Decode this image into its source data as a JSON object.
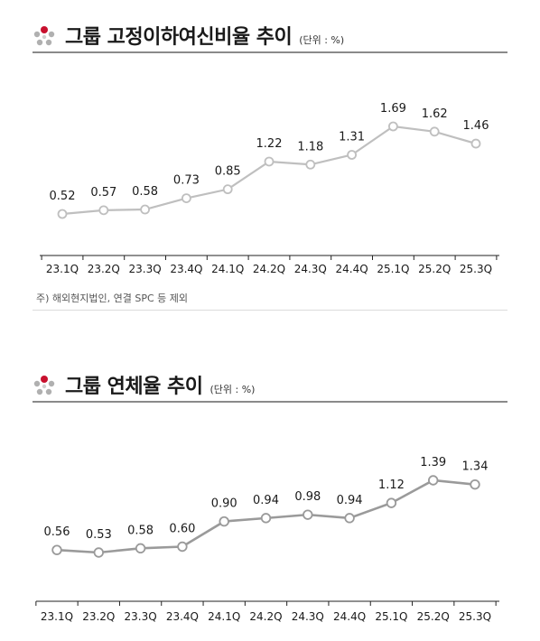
{
  "sections": [
    {
      "title": "그룹 고정이하여신비율 추이",
      "unit": "(단위 : %)",
      "note": "주) 해외현지법인, 연결 SPC 등 제외"
    },
    {
      "title": "그룹 연체율 추이",
      "unit": "(단위 : %)"
    }
  ],
  "colors": {
    "line1": "#bfbfbf",
    "line2": "#9a9a9a",
    "logo_red": "#c8102e",
    "logo_gray": "#b0b0b0",
    "rule": "#8a8a8a"
  },
  "chart_data": [
    {
      "type": "line",
      "categories": [
        "23.1Q",
        "23.2Q",
        "23.3Q",
        "23.4Q",
        "24.1Q",
        "24.2Q",
        "24.3Q",
        "24.4Q",
        "25.1Q",
        "25.2Q",
        "25.3Q"
      ],
      "values": [
        0.52,
        0.57,
        0.58,
        0.73,
        0.85,
        1.22,
        1.18,
        1.31,
        1.69,
        1.62,
        1.46
      ],
      "labels": [
        "0.52",
        "0.57",
        "0.58",
        "0.73",
        "0.85",
        "1.22",
        "1.18",
        "1.31",
        "1.69",
        "1.62",
        "1.46"
      ],
      "title": "그룹 고정이하여신비율 추이",
      "ylabel": "",
      "xlabel": "",
      "grid": false,
      "legend": "none"
    },
    {
      "type": "line",
      "categories": [
        "23.1Q",
        "23.2Q",
        "23.3Q",
        "23.4Q",
        "24.1Q",
        "24.2Q",
        "24.3Q",
        "24.4Q",
        "25.1Q",
        "25.2Q",
        "25.3Q"
      ],
      "values": [
        0.56,
        0.53,
        0.58,
        0.6,
        0.9,
        0.94,
        0.98,
        0.94,
        1.12,
        1.39,
        1.34
      ],
      "labels": [
        "0.56",
        "0.53",
        "0.58",
        "0.60",
        "0.90",
        "0.94",
        "0.98",
        "0.94",
        "1.12",
        "1.39",
        "1.34"
      ],
      "title": "그룹 연체율 추이",
      "ylabel": "",
      "xlabel": "",
      "grid": false,
      "legend": "none"
    }
  ]
}
